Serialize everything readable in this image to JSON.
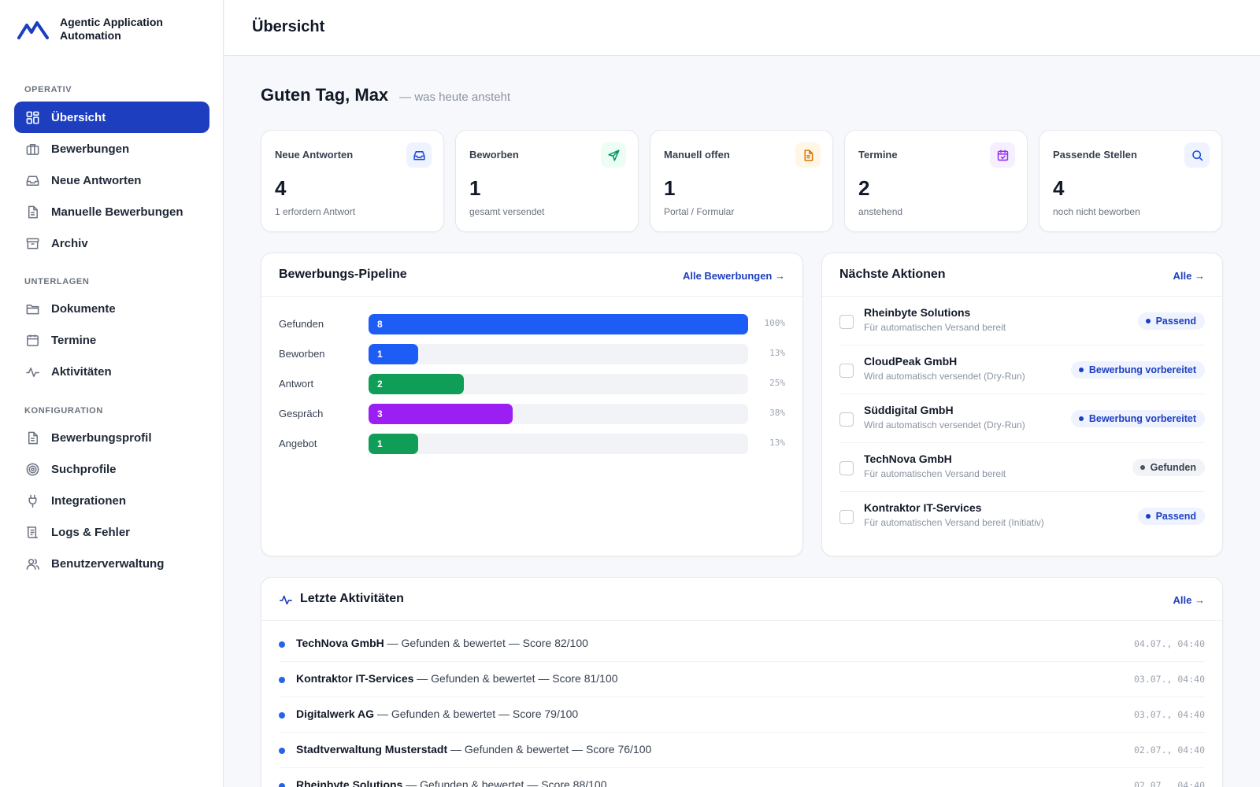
{
  "brand": {
    "name": "Agentic Application Automation"
  },
  "sidebar": {
    "sections": [
      {
        "label": "OPERATIV"
      },
      {
        "label": "UNTERLAGEN"
      },
      {
        "label": "KONFIGURATION"
      }
    ],
    "items": [
      {
        "label": "Übersicht",
        "icon": "grid-icon",
        "active": true
      },
      {
        "label": "Bewerbungen",
        "icon": "briefcase-icon"
      },
      {
        "label": "Neue Antworten",
        "icon": "inbox-icon"
      },
      {
        "label": "Manuelle Bewerbungen",
        "icon": "document-icon"
      },
      {
        "label": "Archiv",
        "icon": "archive-icon"
      },
      {
        "label": "Dokumente",
        "icon": "folder-icon"
      },
      {
        "label": "Termine",
        "icon": "calendar-icon"
      },
      {
        "label": "Aktivitäten",
        "icon": "activity-icon"
      },
      {
        "label": "Bewerbungsprofil",
        "icon": "document-icon"
      },
      {
        "label": "Suchprofile",
        "icon": "target-icon"
      },
      {
        "label": "Integrationen",
        "icon": "plug-icon"
      },
      {
        "label": "Logs & Fehler",
        "icon": "scroll-icon"
      },
      {
        "label": "Benutzerverwaltung",
        "icon": "users-icon"
      }
    ]
  },
  "header": {
    "title": "Übersicht"
  },
  "greeting": {
    "title": "Guten Tag, Max",
    "subtitle": "— was heute ansteht"
  },
  "kpis": [
    {
      "label": "Neue Antworten",
      "value": "4",
      "sub": "1 erfordern Antwort",
      "icon": "inbox-icon",
      "color": "#1d4ed8",
      "bg": "#eef3ff"
    },
    {
      "label": "Beworben",
      "value": "1",
      "sub": "gesamt versendet",
      "icon": "send-icon",
      "color": "#059669",
      "bg": "#ecfdf3"
    },
    {
      "label": "Manuell offen",
      "value": "1",
      "sub": "Portal / Formular",
      "icon": "document-icon",
      "color": "#d97706",
      "bg": "#fff7e6"
    },
    {
      "label": "Termine",
      "value": "2",
      "sub": "anstehend",
      "icon": "calendar-check-icon",
      "color": "#9333ea",
      "bg": "#f6efff"
    },
    {
      "label": "Passende Stellen",
      "value": "4",
      "sub": "noch nicht beworben",
      "icon": "search-icon",
      "color": "#1d4ed8",
      "bg": "#eef3ff"
    }
  ],
  "pipeline": {
    "title": "Bewerbungs-Pipeline",
    "link": "Alle Bewerbungen →",
    "rows": [
      {
        "label": "Gefunden",
        "count": "8",
        "percent": 100,
        "pct_label": "100%",
        "color": "#1d5cf5"
      },
      {
        "label": "Beworben",
        "count": "1",
        "percent": 13,
        "pct_label": "13%",
        "color": "#1d5cf5"
      },
      {
        "label": "Antwort",
        "count": "2",
        "percent": 25,
        "pct_label": "25%",
        "color": "#0f9d58"
      },
      {
        "label": "Gespräch",
        "count": "3",
        "percent": 38,
        "pct_label": "38%",
        "color": "#9b1ff2"
      },
      {
        "label": "Angebot",
        "count": "1",
        "percent": 13,
        "pct_label": "13%",
        "color": "#0f9d58"
      }
    ]
  },
  "actions": {
    "title": "Nächste Aktionen",
    "link": "Alle →",
    "items": [
      {
        "name": "Rheinbyte Solutions",
        "desc": "Für automatischen Versand bereit",
        "badge": "Passend",
        "badge_style": "blue"
      },
      {
        "name": "CloudPeak GmbH",
        "desc": "Wird automatisch versendet (Dry-Run)",
        "badge": "Bewerbung vorbereitet",
        "badge_style": "blue"
      },
      {
        "name": "Süddigital GmbH",
        "desc": "Wird automatisch versendet (Dry-Run)",
        "badge": "Bewerbung vorbereitet",
        "badge_style": "blue"
      },
      {
        "name": "TechNova GmbH",
        "desc": "Für automatischen Versand bereit",
        "badge": "Gefunden",
        "badge_style": "gray"
      },
      {
        "name": "Kontraktor IT-Services",
        "desc": "Für automatischen Versand bereit (Initiativ)",
        "badge": "Passend",
        "badge_style": "blue"
      }
    ]
  },
  "activities": {
    "title": "Letzte Aktivitäten",
    "link": "Alle →",
    "items": [
      {
        "company": "TechNova GmbH",
        "text": " — Gefunden & bewertet — Score 82/100",
        "time": "04.07., 04:40"
      },
      {
        "company": "Kontraktor IT-Services",
        "text": " — Gefunden & bewertet — Score 81/100",
        "time": "03.07., 04:40"
      },
      {
        "company": "Digitalwerk AG",
        "text": " — Gefunden & bewertet — Score 79/100",
        "time": "03.07., 04:40"
      },
      {
        "company": "Stadtverwaltung Musterstadt",
        "text": " — Gefunden & bewertet — Score 76/100",
        "time": "02.07., 04:40"
      },
      {
        "company": "Rheinbyte Solutions",
        "text": " — Gefunden & bewertet — Score 88/100",
        "time": "02.07., 04:40"
      }
    ]
  }
}
